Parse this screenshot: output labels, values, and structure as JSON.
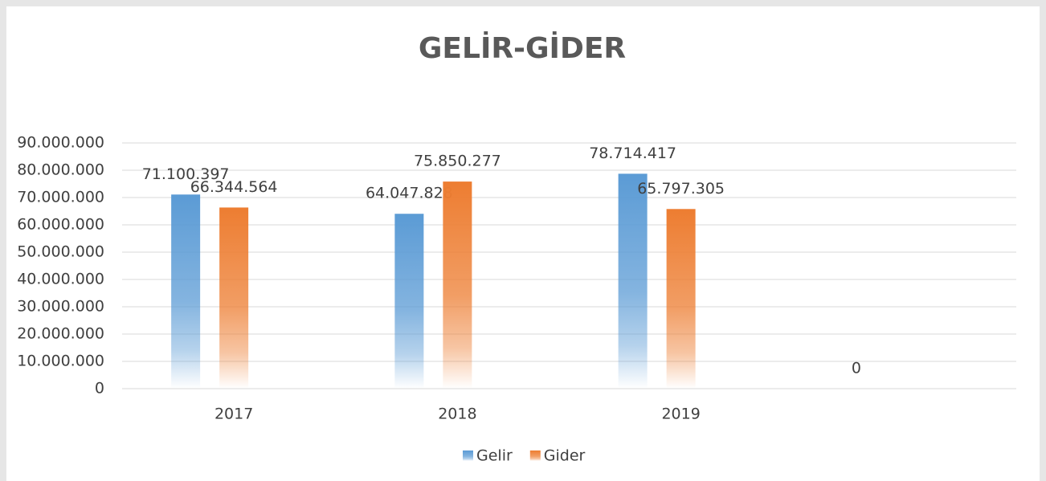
{
  "chart_data": {
    "type": "bar",
    "title": "GELİR-GİDER",
    "categories": [
      "2017",
      "2018",
      "2019",
      null
    ],
    "series": [
      {
        "name": "Gelir",
        "color": "#5b9bd5",
        "values": [
          71100397,
          64047828,
          78714417,
          0
        ],
        "value_labels": [
          "71.100.397",
          "64.047.828",
          "78.714.417",
          "0"
        ]
      },
      {
        "name": "Gider",
        "color": "#ed7d31",
        "values": [
          66344564,
          75850277,
          65797305,
          null
        ],
        "value_labels": [
          "66.344.564",
          "75.850.277",
          "65.797.305",
          null
        ]
      }
    ],
    "ylim": [
      0,
      90000000
    ],
    "yticks": [
      0,
      {
        "value": 10000000,
        "label": "10.000.000"
      },
      {
        "value": 20000000,
        "label": "20.000.000"
      },
      {
        "value": 30000000,
        "label": "30.000.000"
      },
      {
        "value": 40000000,
        "label": "40.000.000"
      },
      {
        "value": 50000000,
        "label": "50.000.000"
      },
      {
        "value": 60000000,
        "label": "60.000.000"
      },
      {
        "value": 70000000,
        "label": "70.000.000"
      },
      {
        "value": 80000000,
        "label": "80.000.000"
      },
      {
        "value": 90000000,
        "label": "90.000.000"
      }
    ],
    "grid": true,
    "legend": "bottom"
  }
}
